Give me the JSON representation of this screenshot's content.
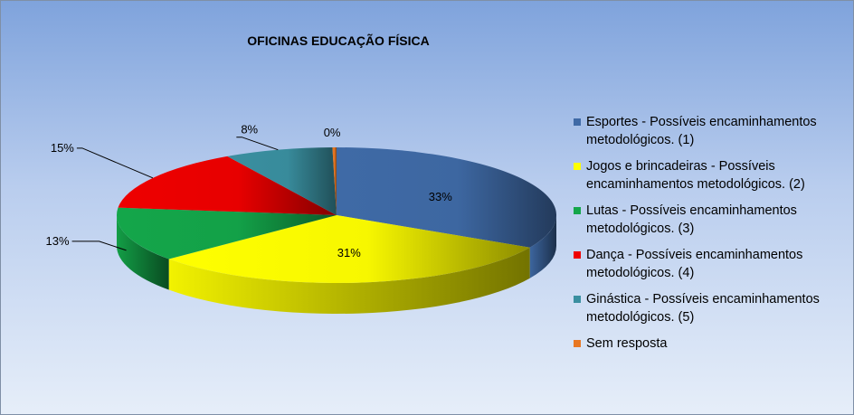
{
  "chart_data": {
    "type": "pie",
    "title": "OFICINAS EDUCAÇÃO FÍSICA",
    "legend_position": "right",
    "three_d": true,
    "slices": [
      {
        "label": "Esportes - Possíveis encaminhamentos metodológicos. (1)",
        "value": 33,
        "data_label": "33%",
        "color": "#3f6aa6"
      },
      {
        "label": "Jogos e brincadeiras - Possíveis encaminhamentos metodológicos. (2)",
        "value": 31,
        "data_label": "31%",
        "color": "#ffff00"
      },
      {
        "label": "Lutas - Possíveis encaminhamentos metodológicos. (3)",
        "value": 13,
        "data_label": "13%",
        "color": "#14a64a"
      },
      {
        "label": "Dança - Possíveis encaminhamentos metodológicos. (4)",
        "value": 15,
        "data_label": "15%",
        "color": "#ee0000"
      },
      {
        "label": "Ginástica - Possíveis encaminhamentos metodológicos. (5)",
        "value": 8,
        "data_label": "8%",
        "color": "#3a8fa0"
      },
      {
        "label": "Sem resposta",
        "value": 0.3,
        "data_label": "0%",
        "color": "#e87722"
      }
    ]
  }
}
